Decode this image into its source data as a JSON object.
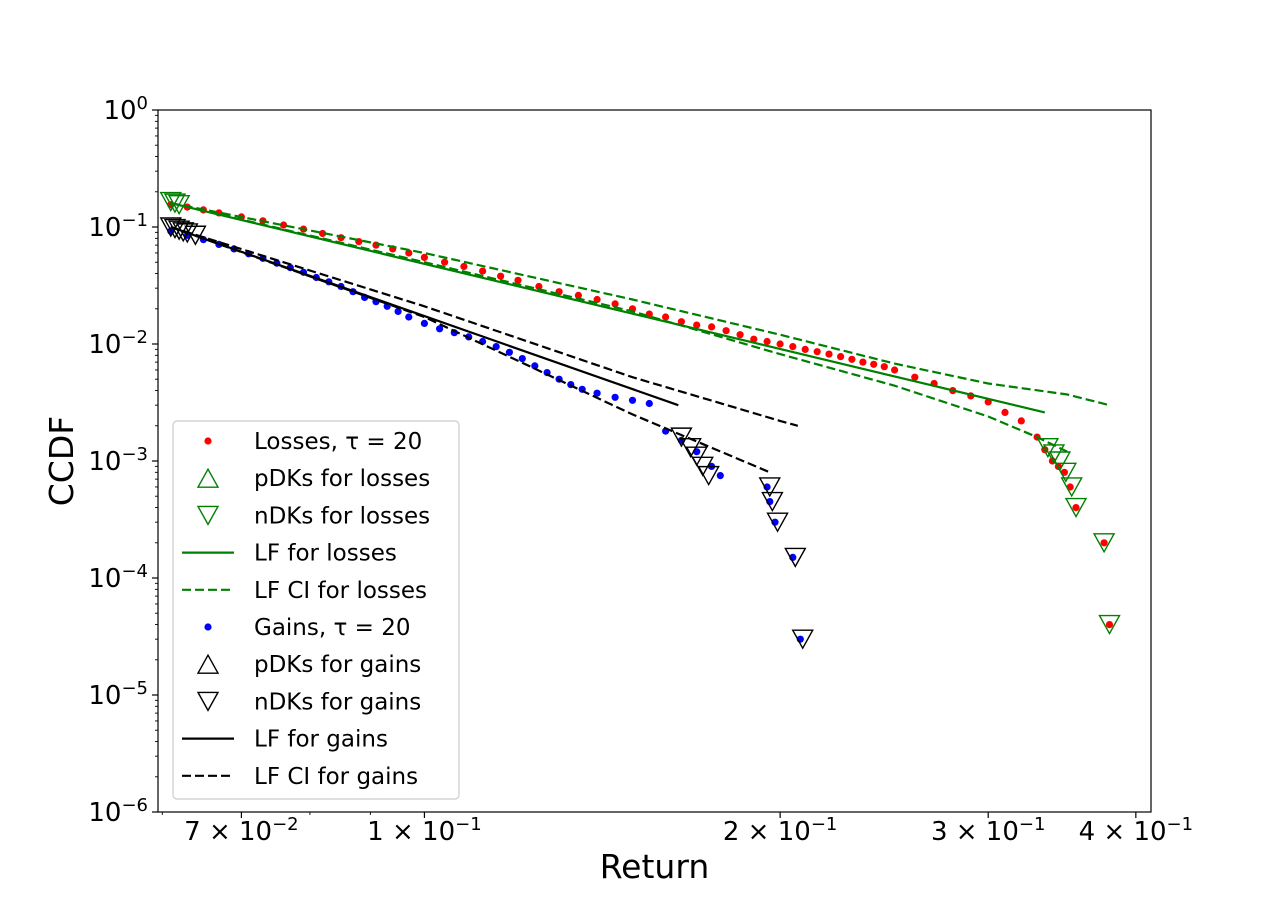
{
  "chart_data": {
    "type": "scatter",
    "title": "",
    "xlabel": "Return",
    "ylabel": "CCDF",
    "xscale": "log",
    "yscale": "log",
    "xlim": [
      0.0595,
      0.412
    ],
    "ylim": [
      1e-06,
      1
    ],
    "x_ticks": [
      {
        "value": 0.07,
        "mantissa": "7",
        "exponent": "−2"
      },
      {
        "value": 0.1,
        "mantissa": "1",
        "exponent": "−1"
      },
      {
        "value": 0.2,
        "mantissa": "2",
        "exponent": "−1"
      },
      {
        "value": 0.3,
        "mantissa": "3",
        "exponent": "−1"
      },
      {
        "value": 0.4,
        "mantissa": "4",
        "exponent": "−1"
      }
    ],
    "y_ticks": [
      {
        "value": 1e-06,
        "exponent": "−6"
      },
      {
        "value": 1e-05,
        "exponent": "−5"
      },
      {
        "value": 0.0001,
        "exponent": "−4"
      },
      {
        "value": 0.001,
        "exponent": "−3"
      },
      {
        "value": 0.01,
        "exponent": "−2"
      },
      {
        "value": 0.1,
        "exponent": "−1"
      },
      {
        "value": 1,
        "exponent": "0"
      }
    ],
    "legend_position": "lower-left",
    "legend": [
      {
        "label": "Losses, τ = 20",
        "marker": "dot",
        "color": "#ff0000"
      },
      {
        "label": "pDKs for losses",
        "marker": "triangle-up",
        "color": "#008000"
      },
      {
        "label": "nDKs for losses",
        "marker": "triangle-down",
        "color": "#008000"
      },
      {
        "label": "LF for losses",
        "marker": "solid-line",
        "color": "#008000"
      },
      {
        "label": "LF CI for losses",
        "marker": "dashed-line",
        "color": "#008000"
      },
      {
        "label": "Gains, τ = 20",
        "marker": "dot",
        "color": "#0000ff"
      },
      {
        "label": "pDKs for gains",
        "marker": "triangle-up",
        "color": "#000000"
      },
      {
        "label": "nDKs for gains",
        "marker": "triangle-down",
        "color": "#000000"
      },
      {
        "label": "LF for gains",
        "marker": "solid-line",
        "color": "#000000"
      },
      {
        "label": "LF CI for gains",
        "marker": "dashed-line",
        "color": "#000000"
      }
    ],
    "series": [
      {
        "name": "Losses, τ = 20",
        "type": "scatter",
        "color": "#ff0000",
        "x": [
          0.061,
          0.063,
          0.065,
          0.067,
          0.07,
          0.073,
          0.076,
          0.079,
          0.082,
          0.085,
          0.088,
          0.091,
          0.094,
          0.097,
          0.1,
          0.104,
          0.108,
          0.112,
          0.116,
          0.12,
          0.125,
          0.13,
          0.135,
          0.14,
          0.145,
          0.15,
          0.155,
          0.16,
          0.165,
          0.17,
          0.175,
          0.18,
          0.185,
          0.19,
          0.195,
          0.2,
          0.205,
          0.21,
          0.215,
          0.22,
          0.225,
          0.23,
          0.235,
          0.24,
          0.245,
          0.25,
          0.26,
          0.27,
          0.28,
          0.29,
          0.3,
          0.31,
          0.32,
          0.33,
          0.335,
          0.34,
          0.344,
          0.348,
          0.352,
          0.356,
          0.376,
          0.38
        ],
        "y": [
          0.155,
          0.148,
          0.14,
          0.132,
          0.122,
          0.113,
          0.104,
          0.096,
          0.088,
          0.081,
          0.075,
          0.07,
          0.065,
          0.06,
          0.055,
          0.05,
          0.046,
          0.042,
          0.038,
          0.035,
          0.031,
          0.028,
          0.026,
          0.024,
          0.022,
          0.02,
          0.018,
          0.017,
          0.0155,
          0.0145,
          0.014,
          0.013,
          0.012,
          0.011,
          0.0105,
          0.01,
          0.0095,
          0.009,
          0.0086,
          0.0082,
          0.0078,
          0.0074,
          0.007,
          0.0067,
          0.0064,
          0.006,
          0.0052,
          0.0046,
          0.004,
          0.0036,
          0.0032,
          0.0026,
          0.0022,
          0.0016,
          0.00125,
          0.001,
          0.0009,
          0.0008,
          0.0006,
          0.0004,
          0.0002,
          4e-05
        ]
      },
      {
        "name": "nDKs for losses",
        "type": "scatter",
        "marker": "triangle-down",
        "color": "#008000",
        "x": [
          0.061,
          0.0615,
          0.062,
          0.337,
          0.341,
          0.345,
          0.349,
          0.353,
          0.356,
          0.376,
          0.38
        ],
        "y": [
          0.165,
          0.16,
          0.155,
          0.0013,
          0.00115,
          0.001,
          0.0008,
          0.0006,
          0.0004,
          0.0002,
          4e-05
        ]
      },
      {
        "name": "LF for losses",
        "type": "line",
        "style": "solid",
        "color": "#008000",
        "x": [
          0.061,
          0.335
        ],
        "y": [
          0.16,
          0.0026
        ]
      },
      {
        "name": "LF CI for losses upper",
        "type": "line",
        "style": "dashed",
        "color": "#008000",
        "x": [
          0.061,
          0.1,
          0.15,
          0.2,
          0.25,
          0.3,
          0.35,
          0.38
        ],
        "y": [
          0.16,
          0.06,
          0.024,
          0.012,
          0.0068,
          0.0046,
          0.0037,
          0.003
        ]
      },
      {
        "name": "LF CI for losses lower",
        "type": "line",
        "style": "dashed",
        "color": "#008000",
        "x": [
          0.061,
          0.1,
          0.15,
          0.2,
          0.25,
          0.3,
          0.33,
          0.35
        ],
        "y": [
          0.16,
          0.05,
          0.019,
          0.0082,
          0.0044,
          0.0024,
          0.0016,
          0.0012
        ]
      },
      {
        "name": "Gains, τ = 20",
        "type": "scatter",
        "color": "#0000ff",
        "x": [
          0.061,
          0.063,
          0.065,
          0.067,
          0.069,
          0.071,
          0.073,
          0.075,
          0.077,
          0.079,
          0.081,
          0.083,
          0.085,
          0.087,
          0.089,
          0.091,
          0.093,
          0.095,
          0.097,
          0.1,
          0.103,
          0.106,
          0.109,
          0.112,
          0.115,
          0.118,
          0.121,
          0.124,
          0.127,
          0.13,
          0.133,
          0.136,
          0.14,
          0.145,
          0.15,
          0.155,
          0.16,
          0.165,
          0.17,
          0.175,
          0.178,
          0.195,
          0.196,
          0.198,
          0.205,
          0.208
        ],
        "y": [
          0.092,
          0.085,
          0.078,
          0.071,
          0.065,
          0.059,
          0.054,
          0.049,
          0.045,
          0.041,
          0.037,
          0.034,
          0.031,
          0.028,
          0.025,
          0.023,
          0.021,
          0.019,
          0.017,
          0.015,
          0.0135,
          0.0125,
          0.0115,
          0.0105,
          0.0095,
          0.0085,
          0.0075,
          0.0065,
          0.0057,
          0.005,
          0.0045,
          0.0041,
          0.0038,
          0.0035,
          0.0033,
          0.0031,
          0.0018,
          0.0015,
          0.0012,
          0.0009,
          0.00075,
          0.0006,
          0.00045,
          0.0003,
          0.00015,
          3e-05
        ]
      },
      {
        "name": "nDKs for gains",
        "type": "scatter",
        "marker": "triangle-down",
        "color": "#000000",
        "x": [
          0.061,
          0.0615,
          0.062,
          0.0625,
          0.063,
          0.064,
          0.165,
          0.168,
          0.17,
          0.172,
          0.174,
          0.196,
          0.197,
          0.199,
          0.206,
          0.209
        ],
        "y": [
          0.1,
          0.097,
          0.094,
          0.091,
          0.089,
          0.085,
          0.0016,
          0.0013,
          0.0011,
          0.0009,
          0.00075,
          0.0006,
          0.00045,
          0.0003,
          0.00015,
          3e-05
        ]
      },
      {
        "name": "LF for gains",
        "type": "line",
        "style": "solid",
        "color": "#000000",
        "x": [
          0.061,
          0.164
        ],
        "y": [
          0.1,
          0.003
        ]
      },
      {
        "name": "LF CI for gains upper",
        "type": "line",
        "style": "dashed",
        "color": "#000000",
        "x": [
          0.061,
          0.1,
          0.15,
          0.2,
          0.207
        ],
        "y": [
          0.1,
          0.021,
          0.0052,
          0.0022,
          0.002
        ]
      },
      {
        "name": "LF CI for gains lower",
        "type": "line",
        "style": "dashed",
        "color": "#000000",
        "x": [
          0.061,
          0.1,
          0.15,
          0.196
        ],
        "y": [
          0.1,
          0.017,
          0.0025,
          0.0008
        ]
      }
    ]
  }
}
